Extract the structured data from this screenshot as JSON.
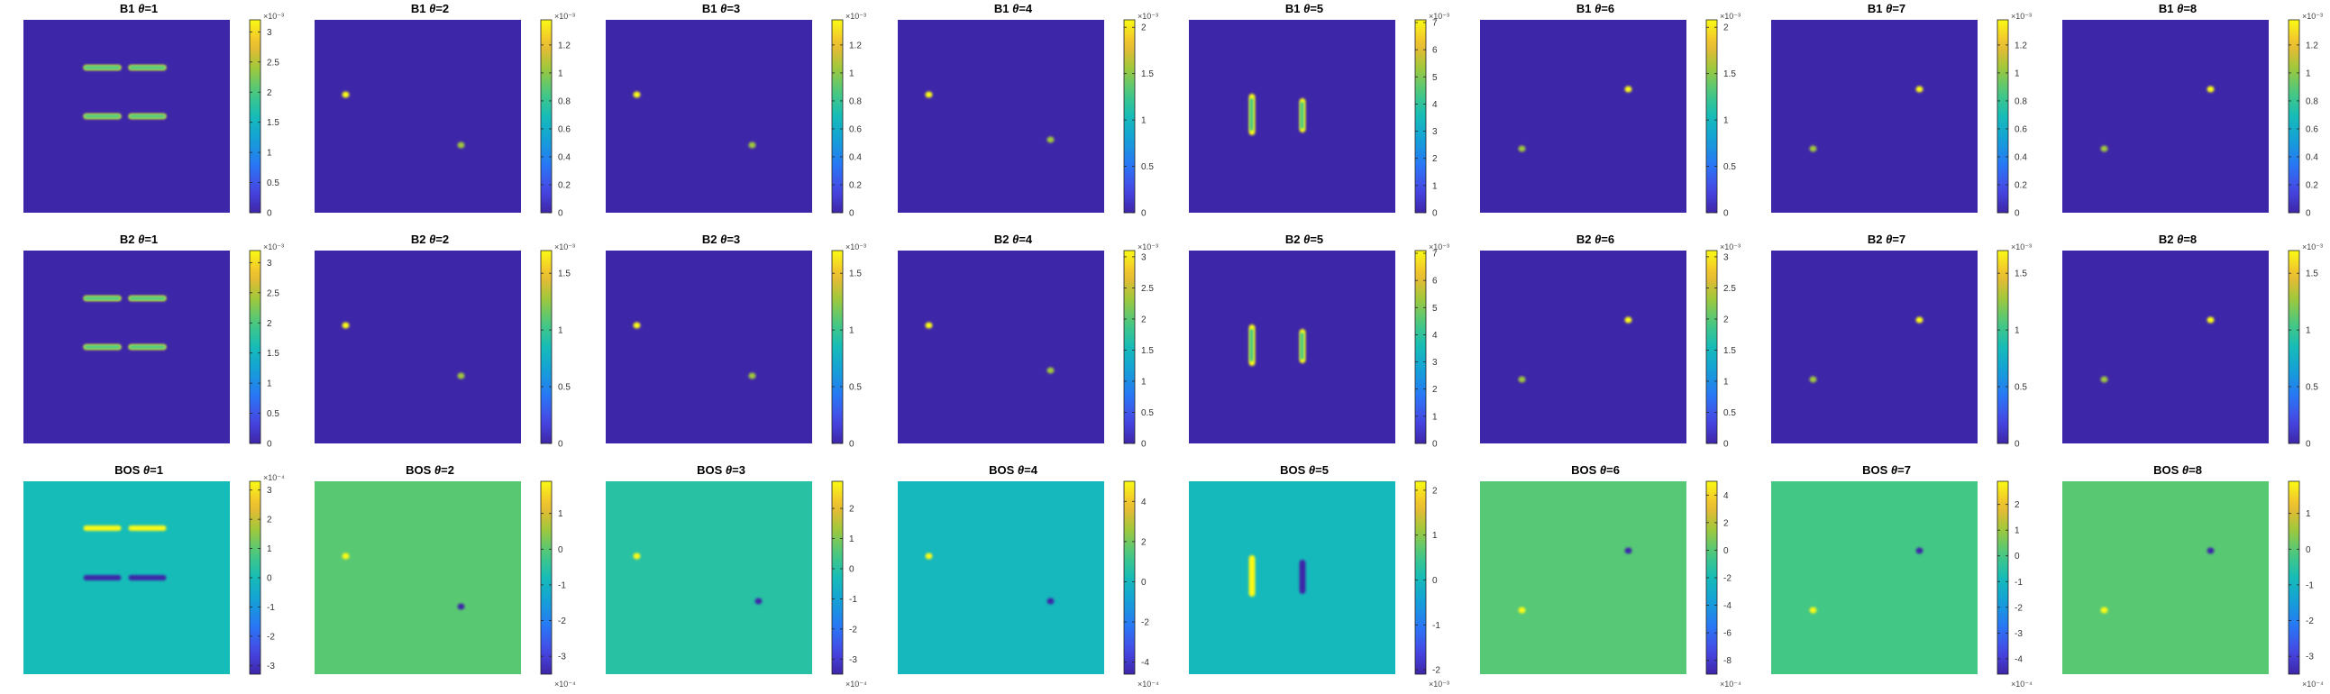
{
  "colors": {
    "colormap": "parula",
    "background_low": "#3D28B0",
    "bos_background_zero": "#16BCB8",
    "bos_background_pos": "#79CC5E"
  },
  "chart_data": [
    {
      "type": "heatmap",
      "row": "B1",
      "title_prefix": "B1",
      "title_symbol": "θ",
      "title_suffix": "=1",
      "cmin": 0,
      "cmax": 3.2,
      "ticks": [
        "0",
        "0.5",
        "1",
        "1.5",
        "2",
        "2.5",
        "3"
      ],
      "exponent": "×10⁻³",
      "exponent_pos": "top",
      "feature": "double-horizontal"
    },
    {
      "type": "heatmap",
      "row": "B1",
      "title_prefix": "B1",
      "title_symbol": "θ",
      "title_suffix": "=2",
      "cmin": 0,
      "cmax": 1.38,
      "ticks": [
        "0",
        "0.2",
        "0.4",
        "0.6",
        "0.8",
        "1",
        "1.2"
      ],
      "exponent": "×10⁻³",
      "exponent_pos": "top",
      "feature": "two-spots"
    },
    {
      "type": "heatmap",
      "row": "B1",
      "title_prefix": "B1",
      "title_symbol": "θ",
      "title_suffix": "=3",
      "cmin": 0,
      "cmax": 1.38,
      "ticks": [
        "0",
        "0.2",
        "0.4",
        "0.6",
        "0.8",
        "1",
        "1.2"
      ],
      "exponent": "×10⁻³",
      "exponent_pos": "top",
      "feature": "two-spots"
    },
    {
      "type": "heatmap",
      "row": "B1",
      "title_prefix": "B1",
      "title_symbol": "θ",
      "title_suffix": "=4",
      "cmin": 0,
      "cmax": 2.08,
      "ticks": [
        "0",
        "0.5",
        "1",
        "1.5",
        "2"
      ],
      "exponent": "×10⁻³",
      "exponent_pos": "top",
      "feature": "two-spots"
    },
    {
      "type": "heatmap",
      "row": "B1",
      "title_prefix": "B1",
      "title_symbol": "θ",
      "title_suffix": "=5",
      "cmin": 0,
      "cmax": 7.1,
      "ticks": [
        "0",
        "1",
        "2",
        "3",
        "4",
        "5",
        "6",
        "7"
      ],
      "exponent": "×10⁻³",
      "exponent_pos": "top",
      "feature": "double-vertical"
    },
    {
      "type": "heatmap",
      "row": "B1",
      "title_prefix": "B1",
      "title_symbol": "θ",
      "title_suffix": "=6",
      "cmin": 0,
      "cmax": 2.08,
      "ticks": [
        "0",
        "0.5",
        "1",
        "1.5",
        "2"
      ],
      "exponent": "×10⁻³",
      "exponent_pos": "top",
      "feature": "two-spots"
    },
    {
      "type": "heatmap",
      "row": "B1",
      "title_prefix": "B1",
      "title_symbol": "θ",
      "title_suffix": "=7",
      "cmin": 0,
      "cmax": 1.38,
      "ticks": [
        "0",
        "0.2",
        "0.4",
        "0.6",
        "0.8",
        "1",
        "1.2"
      ],
      "exponent": "×10⁻³",
      "exponent_pos": "top",
      "feature": "two-spots"
    },
    {
      "type": "heatmap",
      "row": "B1",
      "title_prefix": "B1",
      "title_symbol": "θ",
      "title_suffix": "=8",
      "cmin": 0,
      "cmax": 1.38,
      "ticks": [
        "0",
        "0.2",
        "0.4",
        "0.6",
        "0.8",
        "1",
        "1.2"
      ],
      "exponent": "×10⁻³",
      "exponent_pos": "top",
      "feature": "two-spots"
    },
    {
      "type": "heatmap",
      "row": "B2",
      "title_prefix": "B2",
      "title_symbol": "θ",
      "title_suffix": "=1",
      "cmin": 0,
      "cmax": 3.2,
      "ticks": [
        "0",
        "0.5",
        "1",
        "1.5",
        "2",
        "2.5",
        "3"
      ],
      "exponent": "×10⁻³",
      "exponent_pos": "top",
      "feature": "double-horizontal"
    },
    {
      "type": "heatmap",
      "row": "B2",
      "title_prefix": "B2",
      "title_symbol": "θ",
      "title_suffix": "=2",
      "cmin": 0,
      "cmax": 1.7,
      "ticks": [
        "0",
        "0.5",
        "1",
        "1.5"
      ],
      "exponent": "×10⁻³",
      "exponent_pos": "top",
      "feature": "two-spots"
    },
    {
      "type": "heatmap",
      "row": "B2",
      "title_prefix": "B2",
      "title_symbol": "θ",
      "title_suffix": "=3",
      "cmin": 0,
      "cmax": 1.7,
      "ticks": [
        "0",
        "0.5",
        "1",
        "1.5"
      ],
      "exponent": "×10⁻³",
      "exponent_pos": "top",
      "feature": "two-spots"
    },
    {
      "type": "heatmap",
      "row": "B2",
      "title_prefix": "B2",
      "title_symbol": "θ",
      "title_suffix": "=4",
      "cmin": 0,
      "cmax": 3.1,
      "ticks": [
        "0",
        "0.5",
        "1",
        "1.5",
        "2",
        "2.5",
        "3"
      ],
      "exponent": "×10⁻³",
      "exponent_pos": "top",
      "feature": "two-spots"
    },
    {
      "type": "heatmap",
      "row": "B2",
      "title_prefix": "B2",
      "title_symbol": "θ",
      "title_suffix": "=5",
      "cmin": 0,
      "cmax": 7.1,
      "ticks": [
        "0",
        "1",
        "2",
        "3",
        "4",
        "5",
        "6",
        "7"
      ],
      "exponent": "×10⁻³",
      "exponent_pos": "top",
      "feature": "double-vertical"
    },
    {
      "type": "heatmap",
      "row": "B2",
      "title_prefix": "B2",
      "title_symbol": "θ",
      "title_suffix": "=6",
      "cmin": 0,
      "cmax": 3.1,
      "ticks": [
        "0",
        "0.5",
        "1",
        "1.5",
        "2",
        "2.5",
        "3"
      ],
      "exponent": "×10⁻³",
      "exponent_pos": "top",
      "feature": "two-spots"
    },
    {
      "type": "heatmap",
      "row": "B2",
      "title_prefix": "B2",
      "title_symbol": "θ",
      "title_suffix": "=7",
      "cmin": 0,
      "cmax": 1.7,
      "ticks": [
        "0",
        "0.5",
        "1",
        "1.5"
      ],
      "exponent": "×10⁻³",
      "exponent_pos": "top",
      "feature": "two-spots"
    },
    {
      "type": "heatmap",
      "row": "B2",
      "title_prefix": "B2",
      "title_symbol": "θ",
      "title_suffix": "=8",
      "cmin": 0,
      "cmax": 1.7,
      "ticks": [
        "0",
        "0.5",
        "1",
        "1.5"
      ],
      "exponent": "×10⁻³",
      "exponent_pos": "top",
      "feature": "two-spots"
    },
    {
      "type": "heatmap",
      "row": "BOS",
      "title_prefix": "BOS",
      "title_symbol": "θ",
      "title_suffix": "=1",
      "cmin": -3.3,
      "cmax": 3.3,
      "ticks": [
        "-3",
        "-2",
        "-1",
        "0",
        "1",
        "2",
        "3"
      ],
      "exponent": "×10⁻⁴",
      "exponent_pos": "top",
      "feature": "bos-double-horizontal"
    },
    {
      "type": "heatmap",
      "row": "BOS",
      "title_prefix": "BOS",
      "title_symbol": "θ",
      "title_suffix": "=2",
      "cmin": -3.5,
      "cmax": 1.9,
      "ticks": [
        "-3",
        "-2",
        "-1",
        "0",
        "1"
      ],
      "exponent": "×10⁻⁴",
      "exponent_pos": "bottom",
      "feature": "bos-two-spots"
    },
    {
      "type": "heatmap",
      "row": "BOS",
      "title_prefix": "BOS",
      "title_symbol": "θ",
      "title_suffix": "=3",
      "cmin": -3.5,
      "cmax": 2.9,
      "ticks": [
        "-3",
        "-2",
        "-1",
        "0",
        "1",
        "2"
      ],
      "exponent": "×10⁻⁴",
      "exponent_pos": "bottom",
      "feature": "bos-two-spots"
    },
    {
      "type": "heatmap",
      "row": "BOS",
      "title_prefix": "BOS",
      "title_symbol": "θ",
      "title_suffix": "=4",
      "cmin": -4.6,
      "cmax": 5,
      "ticks": [
        "-4",
        "-2",
        "0",
        "2",
        "4"
      ],
      "exponent": "×10⁻⁴",
      "exponent_pos": "bottom",
      "feature": "bos-two-spots"
    },
    {
      "type": "heatmap",
      "row": "BOS",
      "title_prefix": "BOS",
      "title_symbol": "θ",
      "title_suffix": "=5",
      "cmin": -2.1,
      "cmax": 2.2,
      "ticks": [
        "-2",
        "-1",
        "0",
        "1",
        "2"
      ],
      "exponent": "×10⁻³",
      "exponent_pos": "bottom",
      "feature": "bos-double-vertical"
    },
    {
      "type": "heatmap",
      "row": "BOS",
      "title_prefix": "BOS",
      "title_symbol": "θ",
      "title_suffix": "=6",
      "cmin": -9,
      "cmax": 5,
      "ticks": [
        "-8",
        "-6",
        "-4",
        "-2",
        "0",
        "2",
        "4"
      ],
      "exponent": "×10⁻⁴",
      "exponent_pos": "bottom",
      "feature": "bos-two-spots"
    },
    {
      "type": "heatmap",
      "row": "BOS",
      "title_prefix": "BOS",
      "title_symbol": "θ",
      "title_suffix": "=7",
      "cmin": -4.6,
      "cmax": 2.9,
      "ticks": [
        "-4",
        "-3",
        "-2",
        "-1",
        "0",
        "1",
        "2"
      ],
      "exponent": "×10⁻⁴",
      "exponent_pos": "bottom",
      "feature": "bos-two-spots"
    },
    {
      "type": "heatmap",
      "row": "BOS",
      "title_prefix": "BOS",
      "title_symbol": "θ",
      "title_suffix": "=8",
      "cmin": -3.5,
      "cmax": 1.9,
      "ticks": [
        "-3",
        "-2",
        "-1",
        "0",
        "1"
      ],
      "exponent": "×10⁻⁴",
      "exponent_pos": "bottom",
      "feature": "bos-two-spots"
    }
  ]
}
